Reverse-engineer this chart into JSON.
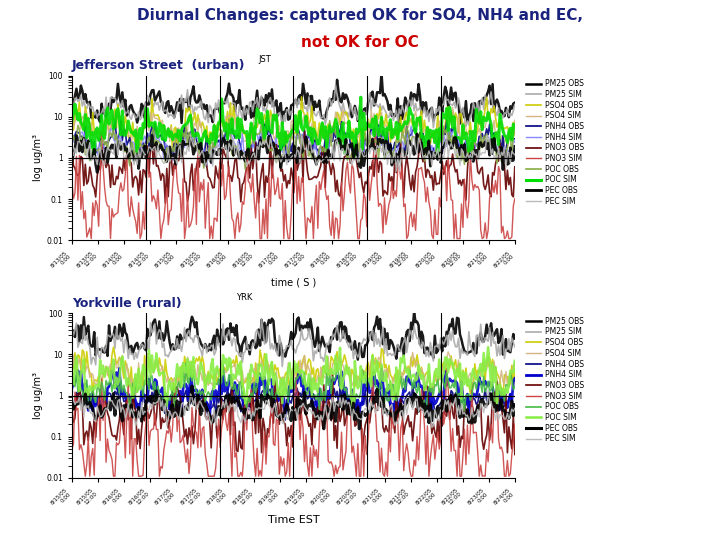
{
  "title_line1": "Diurnal Changes: captured OK for SO4, NH4 and EC,",
  "title_line2": "not OK for OC",
  "title_color1": "#1a237e",
  "title_color2": "#cc0000",
  "subtitle_top": "Jefferson Street  (urban)",
  "subtitle_top_tag": "JST",
  "subtitle_bot": "Yorkville (rural)",
  "subtitle_bot_tag": "YRK",
  "subtitle_color": "#1a237e",
  "legend_top": [
    {
      "label": "PM25 OBS",
      "color": "#000000",
      "lw": 1.8,
      "ls": "-"
    },
    {
      "label": "PM25 SIM",
      "color": "#aaaaaa",
      "lw": 1.2,
      "ls": "-"
    },
    {
      "label": "PSO4 OBS",
      "color": "#cccc00",
      "lw": 1.2,
      "ls": "-"
    },
    {
      "label": "PSO4 SIM",
      "color": "#d4b483",
      "lw": 1.0,
      "ls": "-"
    },
    {
      "label": "PNH4 OBS",
      "color": "#000080",
      "lw": 1.2,
      "ls": "-"
    },
    {
      "label": "PNH4 SIM",
      "color": "#8888ff",
      "lw": 1.0,
      "ls": "-"
    },
    {
      "label": "PNO3 OBS",
      "color": "#660000",
      "lw": 1.2,
      "ls": "-"
    },
    {
      "label": "PNO3 SIM",
      "color": "#cc4444",
      "lw": 1.0,
      "ls": "-"
    },
    {
      "label": "POC OBS",
      "color": "#88aa44",
      "lw": 1.2,
      "ls": "-"
    },
    {
      "label": "POC SIM",
      "color": "#00dd00",
      "lw": 2.2,
      "ls": "-"
    },
    {
      "label": "PEC OBS",
      "color": "#000000",
      "lw": 2.0,
      "ls": "-"
    },
    {
      "label": "PEC SIM",
      "color": "#bbbbbb",
      "lw": 1.0,
      "ls": "-"
    }
  ],
  "legend_bot": [
    {
      "label": "PM25 OBS",
      "color": "#000000",
      "lw": 1.8,
      "ls": "-"
    },
    {
      "label": "PM25 SIM",
      "color": "#aaaaaa",
      "lw": 1.2,
      "ls": "-"
    },
    {
      "label": "PSO4 OBS",
      "color": "#cccc00",
      "lw": 1.2,
      "ls": "-"
    },
    {
      "label": "PSO4 SIM",
      "color": "#d4b483",
      "lw": 1.0,
      "ls": "-"
    },
    {
      "label": "PNH4 OBS",
      "color": "#000080",
      "lw": 1.2,
      "ls": "-"
    },
    {
      "label": "PNH4 SIM",
      "color": "#0000cc",
      "lw": 2.0,
      "ls": "-"
    },
    {
      "label": "PNO3 OBS",
      "color": "#660000",
      "lw": 1.2,
      "ls": "-"
    },
    {
      "label": "PNO3 SIM",
      "color": "#cc4444",
      "lw": 1.0,
      "ls": "-"
    },
    {
      "label": "POC OBS",
      "color": "#44bb44",
      "lw": 1.2,
      "ls": "-"
    },
    {
      "label": "POC SIM",
      "color": "#88ee44",
      "lw": 1.8,
      "ls": "-"
    },
    {
      "label": "PEC OBS",
      "color": "#000000",
      "lw": 2.2,
      "ls": "-"
    },
    {
      "label": "PEC SIM",
      "color": "#bbbbbb",
      "lw": 1.0,
      "ls": "-"
    }
  ],
  "ylabel": "log ug/m³",
  "xlabel_top": "time ( S )",
  "xlabel_bot": "Time EST",
  "ylim_log": [
    0.01,
    100
  ],
  "yticks": [
    0.01,
    0.1,
    1,
    10,
    100
  ],
  "ytick_labels": [
    "0.01",
    "0.1",
    "1",
    "10",
    "100"
  ],
  "background_color": "#ffffff",
  "n_points": 300,
  "n_xticks": 18,
  "xtick_labels_top": [
    "8/13/05\n0:00",
    "8/13/05\n12:00",
    "8/14/05\n0:00",
    "8/14/05\n12:00",
    "8/15/05\n0:00",
    "8/15/05\n12:00",
    "8/16/05\n0:00",
    "8/16/05\n12:00",
    "8/17/05\n0:00",
    "8/17/05\n12:00",
    "8/18/05\n0:00",
    "8/18/05\n12:00",
    "8/19/05\n0:00",
    "8/19/05\n12:00",
    "8/20/05\n0:00",
    "8/20/05\n12:00",
    "8/21/05\n0:00",
    "8/22/05\n0:00"
  ],
  "xtick_labels_bot": [
    "8/15/05\n0:00",
    "8/15/05\n12:00",
    "8/16/05\n0:00",
    "8/16/05\n12:00",
    "8/17/05\n0:00",
    "8/17/05\n12:00",
    "8/18/05\n0:00",
    "8/18/05\n12:00",
    "8/19/05\n0:00",
    "8/19/05\n12:00",
    "8/20/05\n0:00",
    "8/20/05\n12:00",
    "8/21/05\n0:00",
    "8/21/05\n12:00",
    "8/22/05\n0:00",
    "8/22/05\n12:00",
    "8/23/05\n0:00",
    "8/24/05\n0:00"
  ]
}
